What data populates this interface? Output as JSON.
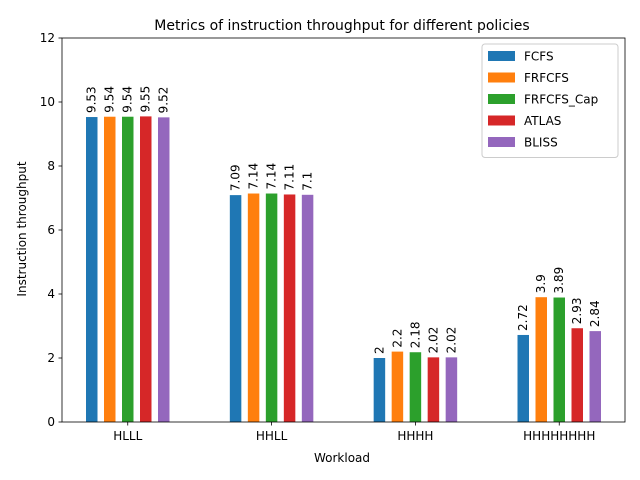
{
  "chart_data": {
    "type": "bar",
    "title": "Metrics of instruction throughput for different policies",
    "xlabel": "Workload",
    "ylabel": "Instruction throughput",
    "categories": [
      "HLLL",
      "HHLL",
      "HHHH",
      "HHHHHHHH"
    ],
    "ylim": [
      0,
      12
    ],
    "yticks": [
      0,
      2,
      4,
      6,
      8,
      10,
      12
    ],
    "grid": false,
    "legend_position": "top-right",
    "series": [
      {
        "name": "FCFS",
        "color": "#1f77b4",
        "values": [
          9.53,
          7.09,
          2,
          2.72
        ],
        "labels": [
          "9.53",
          "7.09",
          "2",
          "2.72"
        ]
      },
      {
        "name": "FRFCFS",
        "color": "#ff7f0e",
        "values": [
          9.54,
          7.14,
          2.2,
          3.9
        ],
        "labels": [
          "9.54",
          "7.14",
          "2.2",
          "3.9"
        ]
      },
      {
        "name": "FRFCFS_Cap",
        "color": "#2ca02c",
        "values": [
          9.54,
          7.14,
          2.18,
          3.89
        ],
        "labels": [
          "9.54",
          "7.14",
          "2.18",
          "3.89"
        ]
      },
      {
        "name": "ATLAS",
        "color": "#d62728",
        "values": [
          9.55,
          7.11,
          2.02,
          2.93
        ],
        "labels": [
          "9.55",
          "7.11",
          "2.02",
          "2.93"
        ]
      },
      {
        "name": "BLISS",
        "color": "#9467bd",
        "values": [
          9.52,
          7.1,
          2.02,
          2.84
        ],
        "labels": [
          "9.52",
          "7.1",
          "2.02",
          "2.84"
        ]
      }
    ]
  }
}
